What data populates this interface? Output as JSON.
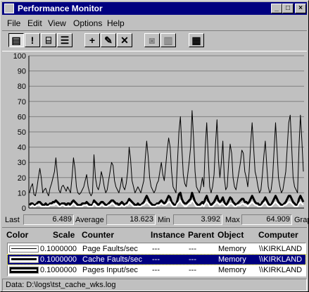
{
  "window": {
    "title": "Performance Monitor"
  },
  "menu": [
    "File",
    "Edit",
    "View",
    "Options",
    "Help"
  ],
  "toolbar": {
    "buttons": [
      "chart-view-icon",
      "alert-view-icon",
      "log-view-icon",
      "report-view-icon",
      "add-counter-icon",
      "edit-counter-icon",
      "delete-counter-icon",
      "update-data-icon",
      "bookmark-icon",
      "options-icon"
    ]
  },
  "chart_data": {
    "type": "line",
    "ylim": [
      0,
      100
    ],
    "yticks": [
      "0",
      "10",
      "20",
      "30",
      "40",
      "50",
      "60",
      "70",
      "80",
      "90",
      "100"
    ],
    "grid": true,
    "series": [
      {
        "name": "Page Faults/sec",
        "color": "#000000",
        "style": "thin",
        "values": [
          10,
          14,
          16,
          9,
          8,
          13,
          20,
          26,
          20,
          10,
          12,
          13,
          10,
          8,
          13,
          16,
          20,
          24,
          33,
          22,
          12,
          10,
          14,
          15,
          13,
          11,
          14,
          12,
          10,
          20,
          33,
          26,
          14,
          10,
          9,
          10,
          12,
          14,
          18,
          22,
          14,
          10,
          8,
          10,
          35,
          20,
          14,
          12,
          16,
          24,
          20,
          14,
          10,
          12,
          18,
          24,
          30,
          28,
          18,
          14,
          12,
          10,
          14,
          20,
          14,
          12,
          16,
          24,
          40,
          32,
          18,
          14,
          10,
          12,
          14,
          12,
          10,
          14,
          18,
          32,
          44,
          34,
          20,
          14,
          12,
          10,
          12,
          16,
          18,
          24,
          30,
          22,
          18,
          28,
          38,
          46,
          40,
          24,
          14,
          12,
          10,
          30,
          50,
          60,
          40,
          22,
          16,
          14,
          22,
          30,
          40,
          64,
          46,
          24,
          14,
          12,
          10,
          14,
          20,
          14,
          40,
          56,
          34,
          14,
          10,
          14,
          22,
          42,
          58,
          32,
          20,
          30,
          44,
          20,
          12,
          14,
          30,
          42,
          36,
          20,
          14,
          12,
          18,
          24,
          30,
          38,
          36,
          24,
          20,
          14,
          24,
          42,
          56,
          40,
          24,
          20,
          14,
          10,
          12,
          22,
          34,
          44,
          28,
          14,
          10,
          12,
          20,
          38,
          56,
          38,
          20,
          14,
          10,
          12,
          18,
          24,
          40,
          56,
          61,
          40,
          20,
          14,
          12,
          10,
          40,
          61,
          44,
          24
        ]
      },
      {
        "name": "Cache Faults/sec",
        "color": "#000000",
        "style": "bold",
        "values": [
          2,
          3,
          3,
          2,
          2,
          3,
          4,
          4,
          3,
          2,
          2,
          3,
          2,
          2,
          3,
          3,
          4,
          4,
          5,
          4,
          3,
          2,
          3,
          3,
          3,
          2,
          3,
          3,
          2,
          4,
          5,
          4,
          3,
          2,
          2,
          2,
          3,
          3,
          3,
          4,
          3,
          2,
          2,
          2,
          5,
          4,
          3,
          2,
          3,
          4,
          4,
          3,
          2,
          2,
          3,
          4,
          5,
          5,
          4,
          3,
          3,
          2,
          3,
          4,
          3,
          2,
          3,
          4,
          6,
          5,
          4,
          3,
          2,
          2,
          3,
          2,
          2,
          3,
          4,
          6,
          8,
          6,
          4,
          3,
          2,
          2,
          2,
          3,
          3,
          4,
          5,
          4,
          3,
          4,
          6,
          8,
          7,
          4,
          3,
          2,
          2,
          5,
          9,
          10,
          6,
          4,
          3,
          3,
          4,
          5,
          6,
          10,
          7,
          4,
          3,
          2,
          2,
          3,
          4,
          3,
          6,
          8,
          5,
          3,
          2,
          3,
          4,
          6,
          8,
          5,
          4,
          5,
          7,
          4,
          2,
          3,
          5,
          7,
          6,
          4,
          3,
          2,
          3,
          4,
          5,
          6,
          6,
          4,
          4,
          3,
          4,
          6,
          8,
          6,
          4,
          3,
          3,
          2,
          2,
          4,
          5,
          7,
          5,
          3,
          2,
          2,
          4,
          6,
          8,
          6,
          4,
          3,
          2,
          2,
          3,
          4,
          6,
          8,
          8,
          6,
          4,
          3,
          2,
          2,
          6,
          8,
          6,
          4
        ]
      },
      {
        "name": "Pages Input/sec",
        "color": "#ffffff",
        "style": "medium",
        "values": [
          1,
          1,
          2,
          1,
          1,
          2,
          2,
          2,
          1,
          1,
          1,
          1,
          1,
          1,
          2,
          2,
          2,
          2,
          3,
          2,
          1,
          1,
          2,
          2,
          1,
          1,
          1,
          1,
          1,
          2,
          3,
          2,
          1,
          1,
          1,
          1,
          1,
          2,
          2,
          2,
          1,
          1,
          1,
          1,
          3,
          2,
          1,
          1,
          1,
          2,
          2,
          1,
          1,
          1,
          2,
          2,
          3,
          3,
          2,
          1,
          1,
          1,
          1,
          2,
          1,
          1,
          2,
          2,
          4,
          3,
          2,
          1,
          1,
          1,
          1,
          1,
          1,
          2,
          2,
          3,
          4,
          3,
          2,
          1,
          1,
          1,
          1,
          2,
          2,
          2,
          3,
          2,
          2,
          2,
          3,
          4,
          4,
          2,
          1,
          1,
          1,
          3,
          4,
          5,
          3,
          2,
          1,
          1,
          2,
          3,
          3,
          5,
          4,
          2,
          1,
          1,
          1,
          1,
          2,
          1,
          3,
          4,
          3,
          1,
          1,
          1,
          2,
          3,
          4,
          3,
          2,
          3,
          3,
          2,
          1,
          1,
          2,
          3,
          3,
          2,
          1,
          1,
          2,
          2,
          2,
          3,
          3,
          2,
          2,
          1,
          2,
          3,
          4,
          3,
          2,
          2,
          1,
          1,
          1,
          2,
          3,
          4,
          2,
          1,
          1,
          1,
          2,
          3,
          4,
          3,
          2,
          1,
          1,
          1,
          2,
          2,
          3,
          4,
          4,
          3,
          2,
          1,
          1,
          1,
          3,
          4,
          3,
          2
        ]
      }
    ]
  },
  "stats": {
    "last_label": "Last",
    "last": "6.489",
    "avg_label": "Average",
    "avg": "18.623",
    "min_label": "Min",
    "min": "3.992",
    "max_label": "Max",
    "max": "64.909",
    "graph_label": "Grap"
  },
  "legend": {
    "headers": {
      "color": "Color",
      "scale": "Scale",
      "counter": "Counter",
      "instance": "Instance",
      "parent": "Parent",
      "object": "Object",
      "computer": "Computer"
    },
    "rows": [
      {
        "scale": "0.1000000",
        "counter": "Page Faults/sec",
        "instance": "---",
        "parent": "---",
        "object": "Memory",
        "computer": "\\\\KIRKLAND"
      },
      {
        "scale": "0.1000000",
        "counter": "Cache Faults/sec",
        "instance": "---",
        "parent": "---",
        "object": "Memory",
        "computer": "\\\\KIRKLAND"
      },
      {
        "scale": "0.1000000",
        "counter": "Pages Input/sec",
        "instance": "---",
        "parent": "---",
        "object": "Memory",
        "computer": "\\\\KIRKLAND"
      }
    ]
  },
  "status": {
    "text": "Data: D:\\logs\\tst_cache_wks.log"
  }
}
